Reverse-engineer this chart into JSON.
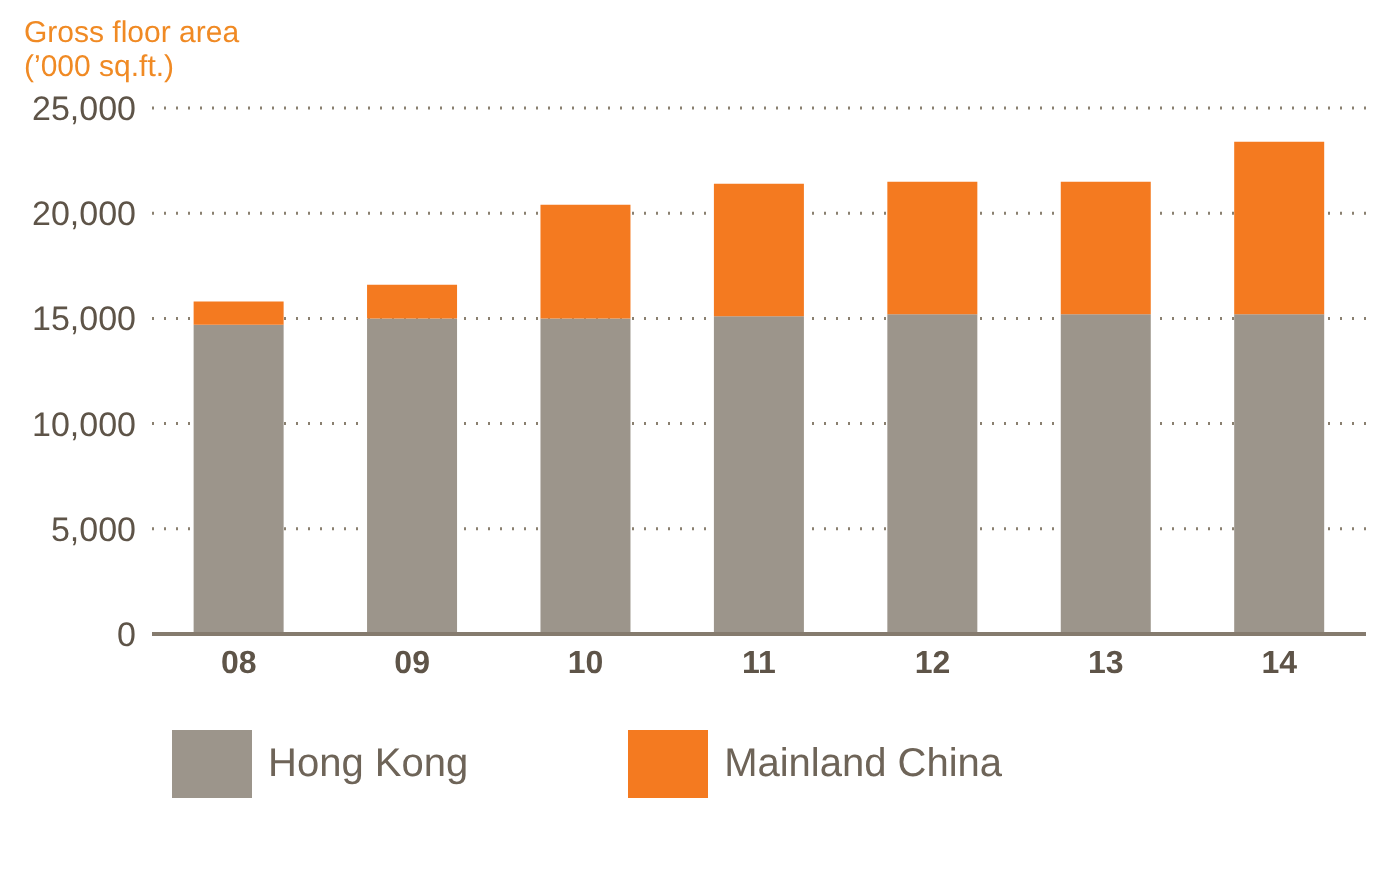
{
  "chart_data": {
    "type": "bar",
    "title": "Gross floor area",
    "ylabel": "(’000 sq.ft.)",
    "categories": [
      "08",
      "09",
      "10",
      "11",
      "12",
      "13",
      "14"
    ],
    "stacked": true,
    "series": [
      {
        "name": "Hong Kong",
        "color": "#9c958b",
        "values": [
          14700,
          15000,
          15000,
          15100,
          15200,
          15200,
          15200
        ]
      },
      {
        "name": "Mainland China",
        "color": "#f47a20",
        "values": [
          1100,
          1600,
          5400,
          6300,
          6300,
          6300,
          8200
        ]
      }
    ],
    "ylim": [
      0,
      25000
    ],
    "yticks": [
      {
        "value": 0,
        "label": "0"
      },
      {
        "value": 5000,
        "label": "5,000"
      },
      {
        "value": 10000,
        "label": "10,000"
      },
      {
        "value": 15000,
        "label": "15,000"
      },
      {
        "value": 20000,
        "label": "20,000"
      },
      {
        "value": 25000,
        "label": "25,000"
      }
    ],
    "grid": "y",
    "legend": "bottom"
  }
}
